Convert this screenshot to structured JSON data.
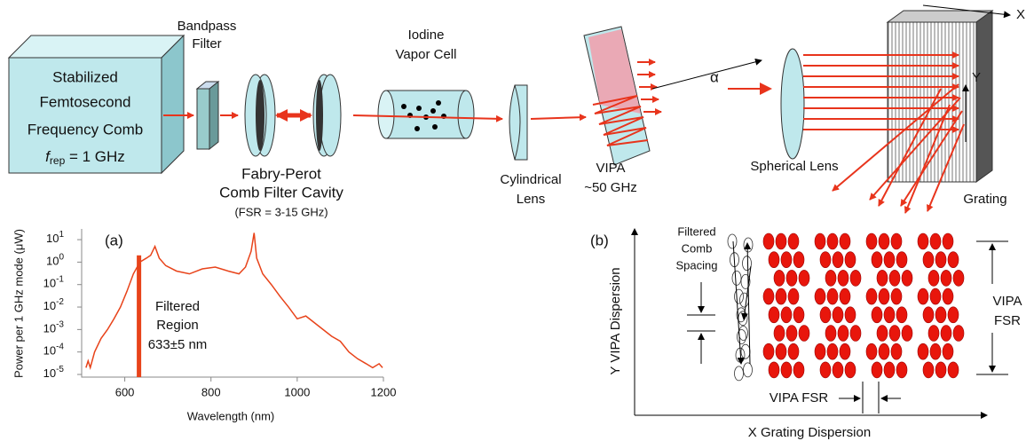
{
  "diagram": {
    "comb_source": [
      "Stabilized",
      "Femtosecond",
      "Frequency Comb"
    ],
    "comb_rep": {
      "symbol": "f",
      "subscript": "rep",
      "text": " = 1 GHz"
    },
    "bandpass_filter": [
      "Bandpass",
      "Filter"
    ],
    "fabry_perot": [
      "Fabry-Perot",
      "Comb Filter Cavity"
    ],
    "fabry_perot_fsr": "(FSR = 3-15 GHz)",
    "iodine_cell": [
      "Iodine",
      "Vapor Cell"
    ],
    "cylindrical_lens": [
      "Cylindrical",
      "Lens"
    ],
    "vipa": [
      "VIPA",
      "~50 GHz"
    ],
    "angle": "α",
    "spherical_lens": "Spherical Lens",
    "grating": "Grating",
    "x_axis": "X",
    "y_axis": "Y"
  },
  "panel_a": {
    "type": "line",
    "label": "(a)",
    "xlabel": "Wavelength (nm)",
    "ylabel": "Power per 1 GHz mode (μW)",
    "color": "#e8431a",
    "log_y": true,
    "xlim": [
      500,
      1200
    ],
    "xticks": [
      600,
      800,
      1000,
      1200
    ],
    "ylim": [
      1e-05,
      30
    ],
    "yticks": [
      {
        "value": 10,
        "base": "10",
        "exponent": "1"
      },
      {
        "value": 1,
        "base": "10",
        "exponent": "0"
      },
      {
        "value": 0.1,
        "base": "10",
        "exponent": "-1"
      },
      {
        "value": 0.01,
        "base": "10",
        "exponent": "-2"
      },
      {
        "value": 0.001,
        "base": "10",
        "exponent": "-3"
      },
      {
        "value": 0.0001,
        "base": "10",
        "exponent": "-4"
      },
      {
        "value": 1e-05,
        "base": "10",
        "exponent": "-5"
      }
    ],
    "x": [
      510,
      515,
      520,
      530,
      545,
      560,
      575,
      590,
      605,
      620,
      635,
      650,
      660,
      670,
      680,
      695,
      720,
      750,
      780,
      810,
      840,
      865,
      880,
      893,
      900,
      906,
      920,
      940,
      960,
      980,
      1000,
      1020,
      1040,
      1060,
      1080,
      1100,
      1120,
      1140,
      1160,
      1175,
      1190,
      1198
    ],
    "values": [
      2e-05,
      4e-05,
      2e-05,
      0.0001,
      0.0004,
      0.001,
      0.003,
      0.01,
      0.05,
      0.3,
      1,
      1.5,
      2,
      5,
      1.5,
      0.7,
      0.4,
      0.3,
      0.5,
      0.6,
      0.4,
      0.3,
      0.6,
      3,
      20,
      1.5,
      0.3,
      0.1,
      0.03,
      0.01,
      0.003,
      0.004,
      0.002,
      0.001,
      0.0005,
      0.0003,
      0.0001,
      5e-05,
      3e-05,
      2e-05,
      3e-05,
      2e-05
    ],
    "filtered_region": {
      "x": 633,
      "value": 2,
      "text": [
        "Filtered",
        "Region",
        "633±5 nm"
      ]
    }
  },
  "panel_b": {
    "label": "(b)",
    "xlabel": "X  Grating Dispersion",
    "ylabel": "Y  VIPA Dispersion",
    "filtered_spacing": [
      "Filtered",
      "Comb",
      "Spacing"
    ],
    "vipa_fsr_vertical": [
      "VIPA",
      "FSR"
    ],
    "vipa_fsr_horizontal": "VIPA FSR"
  }
}
